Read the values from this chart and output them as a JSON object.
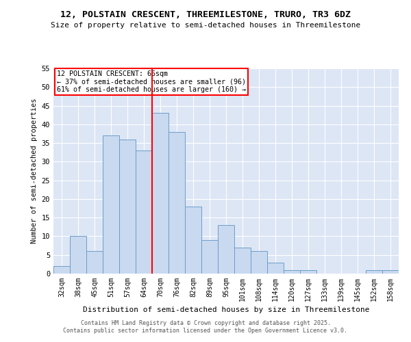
{
  "title": "12, POLSTAIN CRESCENT, THREEMILESTONE, TRURO, TR3 6DZ",
  "subtitle": "Size of property relative to semi-detached houses in Threemilestone",
  "xlabel": "Distribution of semi-detached houses by size in Threemilestone",
  "ylabel": "Number of semi-detached properties",
  "categories": [
    "32sqm",
    "38sqm",
    "45sqm",
    "51sqm",
    "57sqm",
    "64sqm",
    "70sqm",
    "76sqm",
    "82sqm",
    "89sqm",
    "95sqm",
    "101sqm",
    "108sqm",
    "114sqm",
    "120sqm",
    "127sqm",
    "133sqm",
    "139sqm",
    "145sqm",
    "152sqm",
    "158sqm"
  ],
  "values": [
    2,
    10,
    6,
    37,
    36,
    33,
    43,
    38,
    18,
    9,
    13,
    7,
    6,
    3,
    1,
    1,
    0,
    0,
    0,
    1,
    1
  ],
  "bar_color": "#c9d9f0",
  "bar_edge_color": "#6b9ec8",
  "vline_x": 5.5,
  "vline_color": "red",
  "annotation_title": "12 POLSTAIN CRESCENT: 66sqm",
  "annotation_line1": "← 37% of semi-detached houses are smaller (96)",
  "annotation_line2": "61% of semi-detached houses are larger (160) →",
  "annotation_box_color": "red",
  "ylim": [
    0,
    55
  ],
  "yticks": [
    0,
    5,
    10,
    15,
    20,
    25,
    30,
    35,
    40,
    45,
    50,
    55
  ],
  "background_color": "#dde6f5",
  "footer_line1": "Contains HM Land Registry data © Crown copyright and database right 2025.",
  "footer_line2": "Contains public sector information licensed under the Open Government Licence v3.0."
}
